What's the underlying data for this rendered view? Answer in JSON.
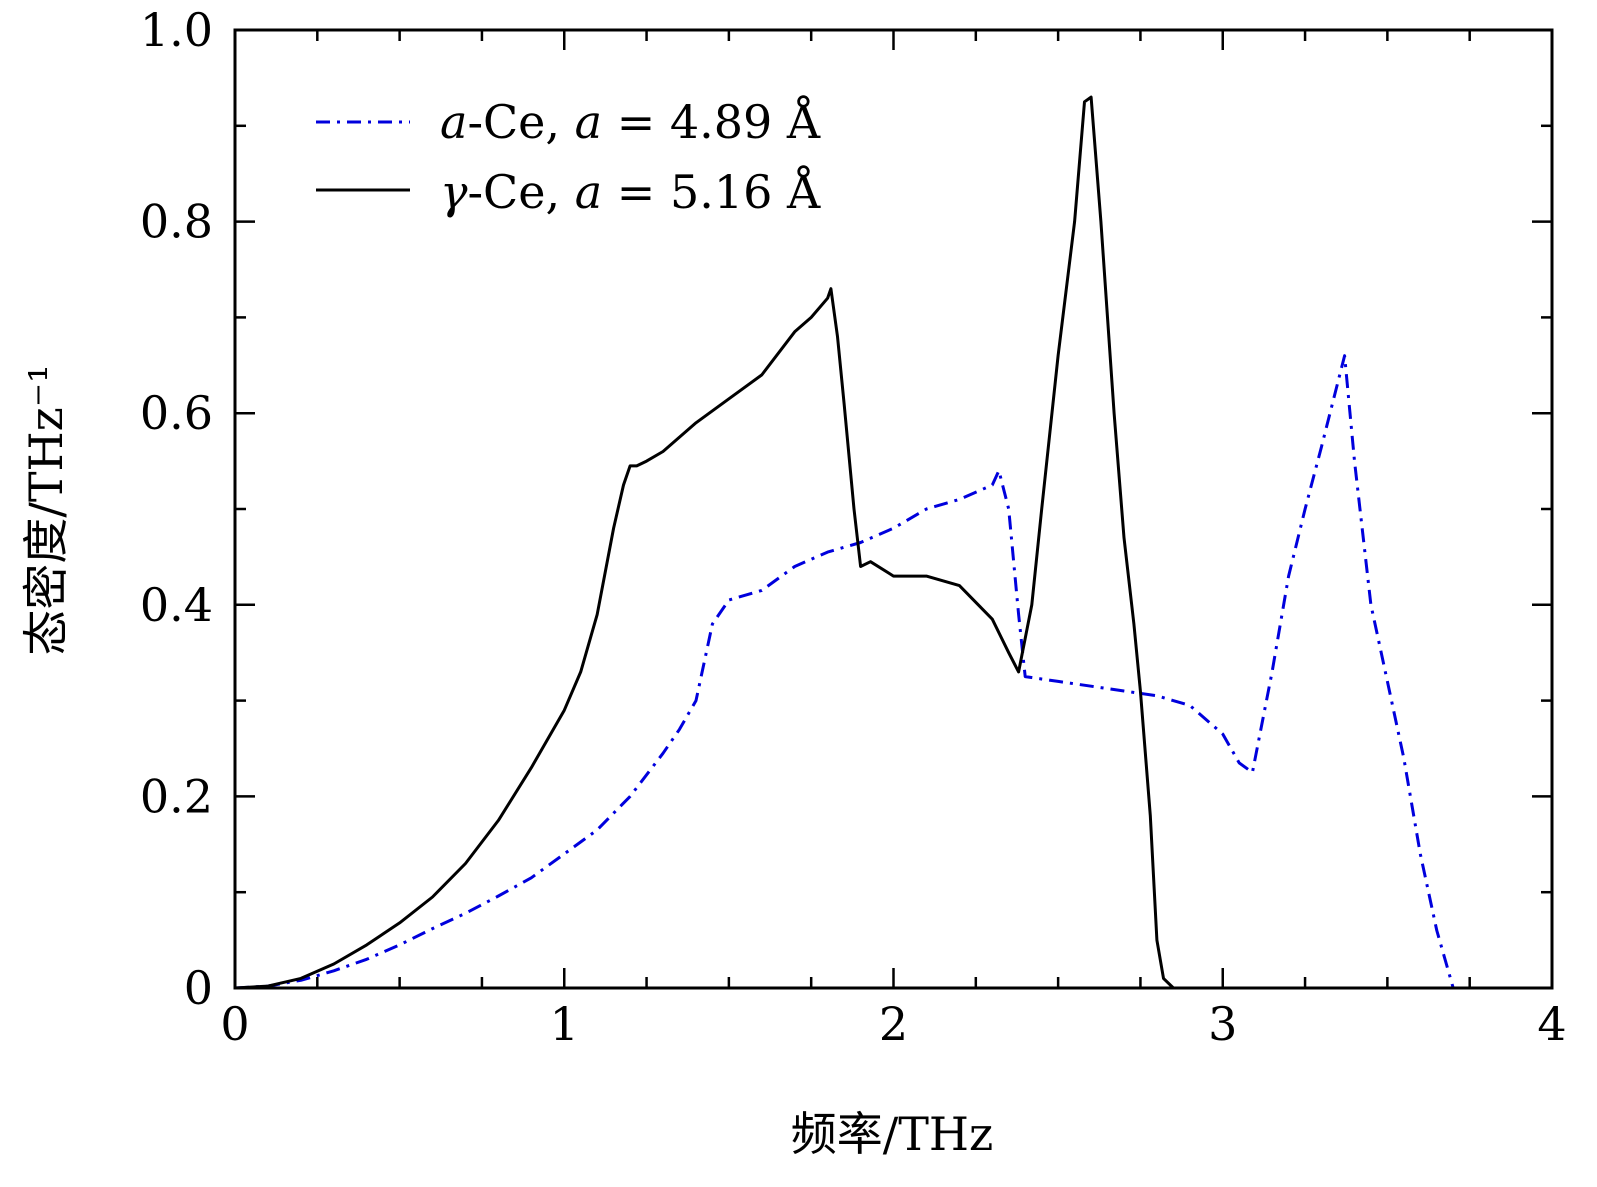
{
  "chart_data": {
    "type": "line",
    "xlabel": "频率/THz",
    "ylabel": "态密度/THz⁻¹",
    "xlim": [
      0,
      4
    ],
    "ylim": [
      0,
      1.0
    ],
    "x_ticks": [
      0,
      1,
      2,
      3,
      4
    ],
    "x_tick_labels": [
      "0",
      "1",
      "2",
      "3",
      "4"
    ],
    "y_ticks": [
      0,
      0.2,
      0.4,
      0.6,
      0.8,
      1.0
    ],
    "y_tick_labels": [
      "0",
      "0.2",
      "0.4",
      "0.6",
      "0.8",
      "1.0"
    ],
    "grid": false,
    "legend_position": "top-left",
    "series": [
      {
        "name": "a-Ce, a = 4.89 Å",
        "color": "#0000dd",
        "style": "dash-dot",
        "x": [
          0,
          0.1,
          0.2,
          0.3,
          0.4,
          0.5,
          0.6,
          0.7,
          0.8,
          0.9,
          1.0,
          1.1,
          1.2,
          1.3,
          1.35,
          1.4,
          1.45,
          1.5,
          1.6,
          1.7,
          1.8,
          1.9,
          2.0,
          2.1,
          2.2,
          2.3,
          2.32,
          2.35,
          2.38,
          2.4,
          2.5,
          2.6,
          2.7,
          2.8,
          2.9,
          3.0,
          3.05,
          3.09,
          3.15,
          3.2,
          3.25,
          3.3,
          3.37,
          3.4,
          3.45,
          3.5,
          3.55,
          3.6,
          3.65,
          3.7
        ],
        "y": [
          0,
          0.002,
          0.008,
          0.018,
          0.03,
          0.045,
          0.062,
          0.078,
          0.096,
          0.115,
          0.14,
          0.165,
          0.2,
          0.245,
          0.27,
          0.3,
          0.38,
          0.405,
          0.415,
          0.44,
          0.455,
          0.465,
          0.48,
          0.5,
          0.51,
          0.525,
          0.54,
          0.5,
          0.39,
          0.325,
          0.32,
          0.315,
          0.31,
          0.305,
          0.295,
          0.265,
          0.235,
          0.225,
          0.33,
          0.43,
          0.5,
          0.565,
          0.66,
          0.55,
          0.4,
          0.32,
          0.24,
          0.14,
          0.06,
          0.0
        ]
      },
      {
        "name": "γ-Ce, a = 5.16 Å",
        "color": "#000000",
        "style": "solid",
        "x": [
          0,
          0.1,
          0.2,
          0.3,
          0.4,
          0.5,
          0.6,
          0.7,
          0.8,
          0.9,
          1.0,
          1.05,
          1.1,
          1.15,
          1.18,
          1.2,
          1.22,
          1.25,
          1.3,
          1.4,
          1.5,
          1.6,
          1.7,
          1.75,
          1.8,
          1.81,
          1.83,
          1.85,
          1.88,
          1.9,
          1.93,
          2.0,
          2.1,
          2.2,
          2.3,
          2.35,
          2.38,
          2.42,
          2.45,
          2.5,
          2.55,
          2.58,
          2.6,
          2.63,
          2.67,
          2.7,
          2.73,
          2.75,
          2.78,
          2.8,
          2.82,
          2.85
        ],
        "y": [
          0,
          0.002,
          0.01,
          0.025,
          0.045,
          0.068,
          0.095,
          0.13,
          0.175,
          0.23,
          0.29,
          0.33,
          0.39,
          0.48,
          0.525,
          0.545,
          0.545,
          0.55,
          0.56,
          0.59,
          0.615,
          0.64,
          0.685,
          0.7,
          0.72,
          0.73,
          0.68,
          0.61,
          0.5,
          0.44,
          0.445,
          0.43,
          0.43,
          0.42,
          0.385,
          0.35,
          0.33,
          0.4,
          0.5,
          0.66,
          0.8,
          0.925,
          0.93,
          0.8,
          0.6,
          0.47,
          0.38,
          0.31,
          0.18,
          0.05,
          0.01,
          0.0
        ]
      }
    ]
  },
  "legend": {
    "items": [
      {
        "prefix": "a",
        "rest": "-Ce, ",
        "var": "a",
        "value": " = 4.89 Å"
      },
      {
        "prefix": "γ",
        "rest": "-Ce, ",
        "var": "a",
        "value": " = 5.16 Å"
      }
    ]
  }
}
